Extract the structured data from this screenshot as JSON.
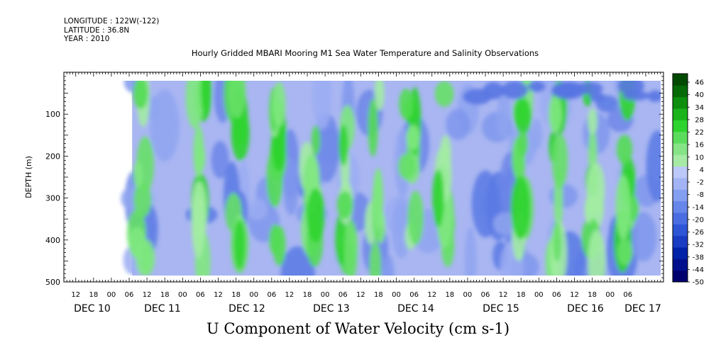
{
  "meta": {
    "longitude": "LONGITUDE : 122W(-122)",
    "latitude": "LATITUDE : 36.8N",
    "year": "YEAR : 2010"
  },
  "title": "Hourly Gridded MBARI Mooring M1 Sea Water Temperature and Salinity Observations",
  "footer": "U Component of Water Velocity (cm s-1)",
  "chart_data": {
    "type": "heatmap",
    "title": "Hourly Gridded MBARI Mooring M1 Sea Water Temperature and Salinity Observations",
    "subtitle": "U Component of Water Velocity (cm s-1)",
    "xlabel": "",
    "ylabel": "DEPTH (m)",
    "x_hour_ticks": [
      "12",
      "18",
      "00",
      "06",
      "12",
      "18",
      "00",
      "06",
      "12",
      "18",
      "00",
      "06",
      "12",
      "18",
      "00",
      "06",
      "12",
      "18",
      "00",
      "06",
      "12",
      "18",
      "00",
      "06",
      "12",
      "18",
      "00",
      "06",
      "12",
      "18",
      "00",
      "06"
    ],
    "x_day_labels": [
      "DEC 10",
      "DEC 11",
      "DEC 12",
      "DEC 13",
      "DEC 14",
      "DEC 15",
      "DEC 16",
      "DEC 17"
    ],
    "x_range_hours_from_dec10_00": [
      -16,
      186
    ],
    "data_x_range_hours_from_dec10_00": [
      7,
      186
    ],
    "ylim": [
      500,
      0
    ],
    "y_ticks": [
      100,
      200,
      300,
      400,
      500
    ],
    "colorbar": {
      "labels": [
        "46",
        "40",
        "34",
        "28",
        "22",
        "16",
        "10",
        "4",
        "-2",
        "-8",
        "-14",
        "-20",
        "-26",
        "-32",
        "-38",
        "-44",
        "-50"
      ],
      "range": [
        -50,
        50
      ],
      "colors_bottom_to_top": [
        "#00006e",
        "#00108c",
        "#0022a8",
        "#1a3cc2",
        "#2e55d6",
        "#4a6ee2",
        "#6686ea",
        "#849ef0",
        "#a2b4f4",
        "#bcc8f8",
        "#a6eaa6",
        "#86e486",
        "#5cdc5c",
        "#2ed42e",
        "#1ab41a",
        "#0e8e0e",
        "#066a06",
        "#024a02"
      ]
    },
    "green_bands_day_hours": [
      {
        "center_hour": 10,
        "label": "DEC 10 10:00"
      },
      {
        "center_hour": 30,
        "label": "DEC 11 06:00"
      },
      {
        "center_hour": 42,
        "label": "DEC 11 18:00"
      },
      {
        "center_hour": 56,
        "label": "DEC 12 08:00"
      },
      {
        "center_hour": 67,
        "label": "DEC 12 19:00"
      },
      {
        "center_hour": 79,
        "label": "DEC 13 07:00"
      },
      {
        "center_hour": 89,
        "label": "DEC 13 17:00"
      },
      {
        "center_hour": 101,
        "label": "DEC 14 05:00"
      },
      {
        "center_hour": 112,
        "label": "DEC 14 16:00"
      },
      {
        "center_hour": 139,
        "label": "DEC 15 19:00"
      },
      {
        "center_hour": 150,
        "label": "DEC 16 06:00"
      },
      {
        "center_hour": 162,
        "label": "DEC 16 18:00"
      },
      {
        "center_hour": 174,
        "label": "DEC 17 06:00"
      }
    ]
  }
}
